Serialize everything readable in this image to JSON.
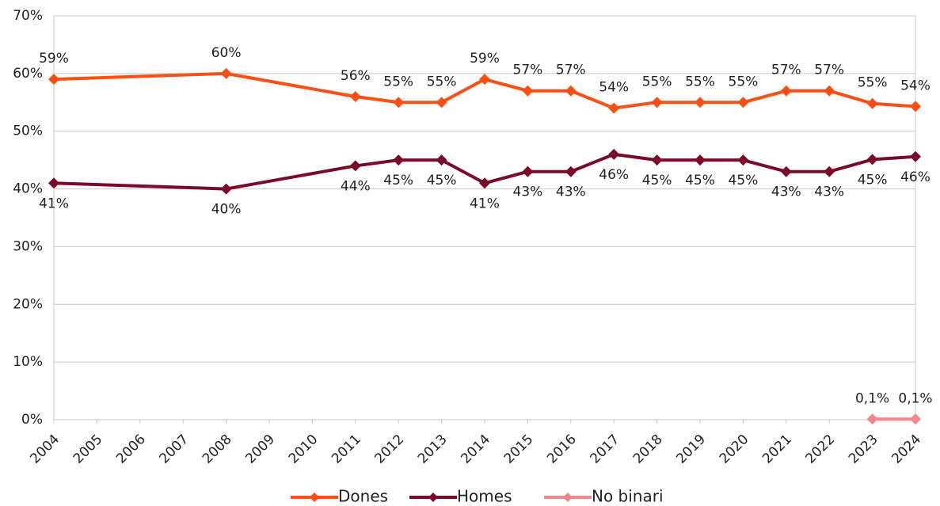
{
  "chart_data": {
    "type": "line",
    "x": [
      2004,
      2008,
      2011,
      2012,
      2013,
      2014,
      2015,
      2016,
      2017,
      2018,
      2019,
      2020,
      2021,
      2022,
      2023,
      2024
    ],
    "xlim": [
      2004,
      2024
    ],
    "xticks": [
      2004,
      2005,
      2006,
      2007,
      2008,
      2009,
      2010,
      2011,
      2012,
      2013,
      2014,
      2015,
      2016,
      2017,
      2018,
      2019,
      2020,
      2021,
      2022,
      2023,
      2024
    ],
    "ylim": [
      0,
      70
    ],
    "yticks": [
      {
        "value": 0,
        "label": "0%"
      },
      {
        "value": 10,
        "label": "10%"
      },
      {
        "value": 20,
        "label": "20%"
      },
      {
        "value": 30,
        "label": "30%"
      },
      {
        "value": 40,
        "label": "40%"
      },
      {
        "value": 50,
        "label": "50%"
      },
      {
        "value": 60,
        "label": "60%"
      },
      {
        "value": 70,
        "label": "70%"
      }
    ],
    "grid": true,
    "legend": "bottom",
    "series": [
      {
        "name": "Dones",
        "color": "#ff4e12",
        "values": [
          59,
          60,
          56,
          55,
          55,
          59,
          57,
          57,
          54,
          55,
          55,
          55,
          57,
          57,
          54.8,
          54.3
        ],
        "value_labels": [
          "59%",
          "60%",
          "56%",
          "55%",
          "55%",
          "59%",
          "57%",
          "57%",
          "54%",
          "55%",
          "55%",
          "55%",
          "57%",
          "57%",
          "55%",
          "54%"
        ]
      },
      {
        "name": "Homes",
        "color": "#7b0a2a",
        "values": [
          41,
          40,
          44,
          45,
          45,
          41,
          43,
          43,
          46,
          45,
          45,
          45,
          43,
          43,
          45.1,
          45.6
        ],
        "value_labels": [
          "41%",
          "40%",
          "44%",
          "45%",
          "45%",
          "41%",
          "43%",
          "43%",
          "46%",
          "45%",
          "45%",
          "45%",
          "43%",
          "43%",
          "45%",
          "46%"
        ]
      },
      {
        "name": "No binari",
        "color": "#f4878a",
        "values": [
          null,
          null,
          null,
          null,
          null,
          null,
          null,
          null,
          null,
          null,
          null,
          null,
          null,
          null,
          0.1,
          0.1
        ],
        "value_labels": [
          null,
          null,
          null,
          null,
          null,
          null,
          null,
          null,
          null,
          null,
          null,
          null,
          null,
          null,
          "0,1%",
          "0,1%"
        ]
      }
    ]
  }
}
